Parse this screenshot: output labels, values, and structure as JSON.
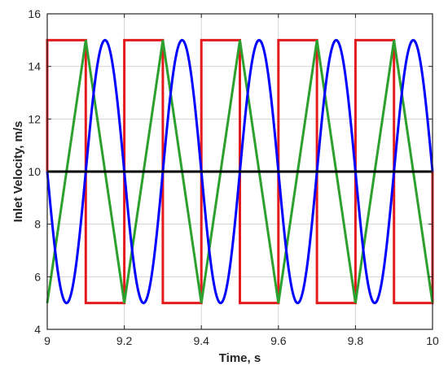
{
  "chart_data": {
    "type": "line",
    "title": "",
    "xlabel": "Time, s",
    "ylabel": "Inlet Velocity, m/s",
    "xlim": [
      9,
      10
    ],
    "ylim": [
      4,
      16
    ],
    "x_ticks": [
      "9",
      "9.2",
      "9.4",
      "9.6",
      "9.8",
      "10"
    ],
    "y_ticks": [
      "4",
      "6",
      "8",
      "10",
      "12",
      "14",
      "16"
    ],
    "grid": true,
    "legend": "none",
    "series": [
      {
        "color": "#000000",
        "x": [
          9,
          10
        ],
        "y": [
          10,
          10
        ]
      },
      {
        "color": "#e41a1c",
        "shape": "square",
        "x": [
          9,
          9,
          9.1,
          9.1,
          9.2,
          9.2,
          9.3,
          9.3,
          9.4,
          9.4,
          9.5,
          9.5,
          9.6,
          9.6,
          9.7,
          9.7,
          9.8,
          9.8,
          9.9,
          9.9,
          10,
          10
        ],
        "y": [
          10,
          15,
          15,
          5,
          5,
          15,
          15,
          5,
          5,
          15,
          15,
          5,
          5,
          15,
          15,
          5,
          5,
          15,
          15,
          5,
          5,
          10
        ]
      },
      {
        "color": "#2ca02c",
        "shape": "triangle",
        "x": [
          9,
          9.1,
          9.2,
          9.3,
          9.4,
          9.5,
          9.6,
          9.7,
          9.8,
          9.9,
          10
        ],
        "y": [
          5,
          15,
          5,
          15,
          5,
          15,
          5,
          15,
          5,
          15,
          5
        ]
      },
      {
        "color": "#0000ff",
        "shape": "sine",
        "mean": 10,
        "amplitude": 5,
        "period": 0.2,
        "phase": 3.14159,
        "x_range": [
          9,
          10
        ]
      }
    ]
  }
}
